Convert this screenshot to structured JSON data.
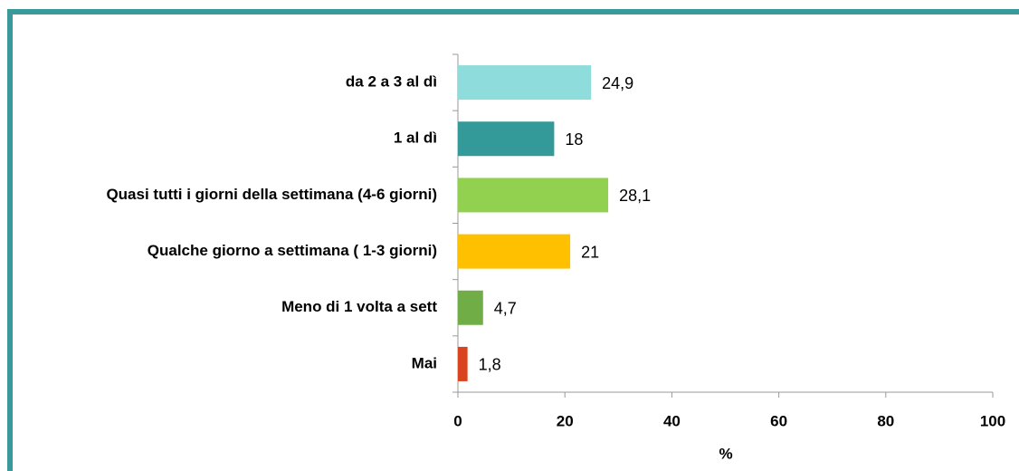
{
  "chart_data": {
    "type": "hbar",
    "categories": [
      "da 2 a 3 al dì",
      "1 al dì",
      "Quasi tutti i giorni della settimana (4-6 giorni)",
      "Qualche giorno a settimana ( 1-3 giorni)",
      "Meno di 1 volta a sett",
      "Mai"
    ],
    "values": [
      24.9,
      18,
      28.1,
      21,
      4.7,
      1.8
    ],
    "value_labels": [
      "24,9",
      "18",
      "28,1",
      "21",
      "4,7",
      "1,8"
    ],
    "colors": [
      "#8fdcdc",
      "#339999",
      "#92d050",
      "#ffc000",
      "#70ad47",
      "#d9441e"
    ],
    "xlim": [
      0,
      100
    ],
    "xticks": [
      0,
      20,
      40,
      60,
      80,
      100
    ],
    "xlabel": "%"
  }
}
